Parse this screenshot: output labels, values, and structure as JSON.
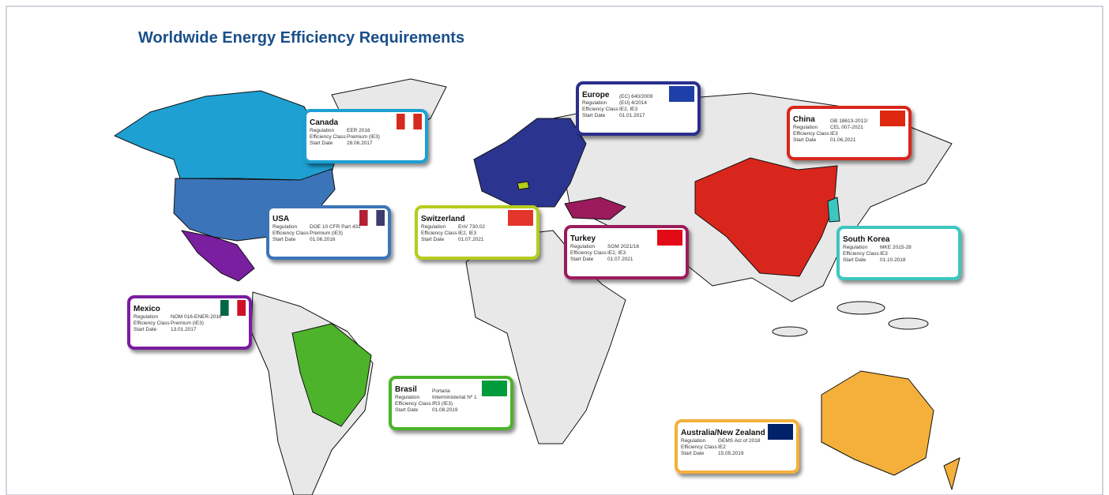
{
  "title": "Worldwide Energy Efficiency Requirements",
  "cards": [
    {
      "name": "Canada",
      "color": "#1ea0d2",
      "rows": [
        {
          "label": "Regulation",
          "value": [
            "EER 2016"
          ]
        },
        {
          "label": "Efficiency Class",
          "value": [
            "Premium (IE3)"
          ]
        },
        {
          "label": "Start Date",
          "value": [
            "28.06.2017"
          ]
        }
      ]
    },
    {
      "name": "Europe",
      "color": "#2b2f8e",
      "rows": [
        {
          "label": "Regulation",
          "value": [
            "(EC) 640/2009",
            "(EU) 4/2014"
          ]
        },
        {
          "label": "Efficiency Class",
          "value": [
            "IE2, IE3"
          ]
        },
        {
          "label": "Start Date",
          "value": [
            "01.01.2017"
          ]
        }
      ]
    },
    {
      "name": "China",
      "color": "#d9261c",
      "rows": [
        {
          "label": "Regulation",
          "value": [
            "GB 18613-2012/",
            "CEL 007-2021"
          ]
        },
        {
          "label": "Efficiency Class",
          "value": [
            "IE3"
          ]
        },
        {
          "label": "Start Date",
          "value": [
            "01.06.2021"
          ]
        }
      ]
    },
    {
      "name": "USA",
      "color": "#3b74b8",
      "rows": [
        {
          "label": "Regulation",
          "value": [
            "DOE 10 CFR Part 431"
          ]
        },
        {
          "label": "Efficiency Class",
          "value": [
            "Premium (IE3)"
          ]
        },
        {
          "label": "Start Date",
          "value": [
            "01.06.2016"
          ]
        }
      ]
    },
    {
      "name": "Switzerland",
      "color": "#b5cc1a",
      "rows": [
        {
          "label": "Regulation",
          "value": [
            "EnV 730.02"
          ]
        },
        {
          "label": "Efficiency Class",
          "value": [
            "IE2, IE3"
          ]
        },
        {
          "label": "Start Date",
          "value": [
            "01.07.2021"
          ]
        }
      ]
    },
    {
      "name": "Turkey",
      "color": "#9b1a5c",
      "rows": [
        {
          "label": "Regulation",
          "value": [
            "SGM 2021/16"
          ]
        },
        {
          "label": "Efficiency Class",
          "value": [
            "IE2, IE3"
          ]
        },
        {
          "label": "Start Date",
          "value": [
            "01.07.2021"
          ]
        }
      ]
    },
    {
      "name": "South Korea",
      "color": "#3cc6bf",
      "rows": [
        {
          "label": "Regulation",
          "value": [
            "MKE 2015-28"
          ]
        },
        {
          "label": "Efficiency Class",
          "value": [
            "IE3"
          ]
        },
        {
          "label": "Start Date",
          "value": [
            "01.10.2018"
          ]
        }
      ]
    },
    {
      "name": "Mexico",
      "color": "#7a1fa0",
      "rows": [
        {
          "label": "Regulation",
          "value": [
            "NOM 016-ENER-2016"
          ]
        },
        {
          "label": "Efficiency Class",
          "value": [
            "Premium (IE3)"
          ]
        },
        {
          "label": "Start Date",
          "value": [
            "13.01.2017"
          ]
        }
      ]
    },
    {
      "name": "Brasil",
      "color": "#4cb32b",
      "rows": [
        {
          "label": "Regulation",
          "value": [
            "Portaria",
            "Interministerial Nº 1"
          ]
        },
        {
          "label": "Efficiency Class",
          "value": [
            "IR3 (IE3)"
          ]
        },
        {
          "label": "Start Date",
          "value": [
            "01.08.2019"
          ]
        }
      ]
    },
    {
      "name": "Australia/New Zealand",
      "color": "#f5b03b",
      "rows": [
        {
          "label": "Regulation",
          "value": [
            "GEMS Act of 2018"
          ]
        },
        {
          "label": "Efficiency Class",
          "value": [
            "IE2"
          ]
        },
        {
          "label": "Start Date",
          "value": [
            "15.05.2019"
          ]
        }
      ]
    }
  ]
}
